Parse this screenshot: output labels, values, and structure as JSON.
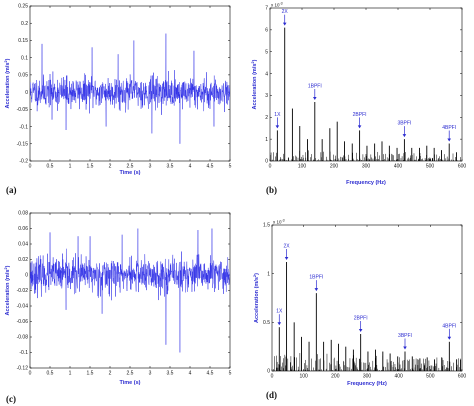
{
  "chart_data": [
    {
      "id": "a",
      "panel_label": "(a)",
      "type": "line",
      "xlabel": "Time (s)",
      "ylabel": "Acceleration (m/s",
      "ylabel_sup": "2",
      "ylabel_close": ")",
      "xlim": [
        0,
        5
      ],
      "ylim": [
        -0.2,
        0.25
      ],
      "xticks": [
        0,
        0.5,
        1,
        1.5,
        2,
        2.5,
        3,
        3.5,
        4,
        4.5,
        5
      ],
      "xtick_labels": [
        "0",
        "0.5",
        "1",
        "1.5",
        "2",
        "2.5",
        "3",
        "3.5",
        "4",
        "4.5",
        "5"
      ],
      "yticks": [
        -0.2,
        -0.15,
        -0.1,
        -0.05,
        0,
        0.05,
        0.1,
        0.15,
        0.2,
        0.25
      ],
      "ytick_labels": [
        "-0.2",
        "-0.15",
        "-0.1",
        "-0.05",
        "0",
        "0.05",
        "0.1",
        "0.15",
        "0.2",
        "0.25"
      ],
      "color": "#2e2ee6",
      "noise": {
        "n": 900,
        "sigma": 0.022,
        "seed": 11,
        "spikes": [
          [
            0.3,
            0.14
          ],
          [
            0.9,
            -0.11
          ],
          [
            1.55,
            0.13
          ],
          [
            1.9,
            -0.1
          ],
          [
            2.6,
            0.15
          ],
          [
            3.05,
            -0.12
          ],
          [
            3.4,
            0.17
          ],
          [
            3.75,
            -0.15
          ],
          [
            4.1,
            0.12
          ],
          [
            4.6,
            -0.1
          ],
          [
            0.55,
            -0.08
          ],
          [
            2.2,
            0.11
          ]
        ]
      }
    },
    {
      "id": "b",
      "panel_label": "(b)",
      "type": "bar",
      "xlabel": "Frequency (Hz)",
      "ylabel": "Acceleration (m/s",
      "ylabel_sup": "2",
      "ylabel_close": ")",
      "exponent": "x 10",
      "exponent_sup": "-3",
      "xlim": [
        0,
        600
      ],
      "ylim": [
        0,
        7
      ],
      "xticks": [
        0,
        100,
        200,
        300,
        400,
        500,
        600
      ],
      "xtick_labels": [
        "0",
        "100",
        "200",
        "300",
        "400",
        "500",
        "600"
      ],
      "yticks": [
        0,
        1,
        2,
        3,
        4,
        5,
        6,
        7
      ],
      "ytick_labels": [
        "0",
        "1",
        "2",
        "3",
        "4",
        "5",
        "6",
        "7"
      ],
      "color": "#000000",
      "peaks": [
        [
          23,
          1.4
        ],
        [
          46,
          6.1
        ],
        [
          70,
          2.4
        ],
        [
          93,
          1.6
        ],
        [
          117,
          1.0
        ],
        [
          140,
          2.7
        ],
        [
          163,
          1.0
        ],
        [
          187,
          1.5
        ],
        [
          210,
          1.8
        ],
        [
          233,
          0.9
        ],
        [
          257,
          0.8
        ],
        [
          280,
          1.4
        ],
        [
          303,
          0.7
        ],
        [
          327,
          0.8
        ],
        [
          350,
          0.9
        ],
        [
          373,
          0.7
        ],
        [
          397,
          0.6
        ],
        [
          420,
          1.0
        ],
        [
          443,
          0.6
        ],
        [
          467,
          0.6
        ],
        [
          490,
          0.7
        ],
        [
          513,
          0.6
        ],
        [
          536,
          0.5
        ],
        [
          560,
          0.8
        ],
        [
          583,
          0.4
        ]
      ],
      "noise": {
        "n": 220,
        "max": 0.55,
        "seed": 5
      },
      "annotations": [
        {
          "label": "2X",
          "x": 46,
          "y": 6.1
        },
        {
          "label": "1X",
          "x": 23,
          "y": 1.4
        },
        {
          "label": "1BPFI",
          "x": 140,
          "y": 2.7
        },
        {
          "label": "2BPFI",
          "x": 280,
          "y": 1.4
        },
        {
          "label": "3BPFI",
          "x": 420,
          "y": 1.0
        },
        {
          "label": "4BPFI",
          "x": 560,
          "y": 0.8
        }
      ]
    },
    {
      "id": "c",
      "panel_label": "(c)",
      "type": "line",
      "xlabel": "Time (s)",
      "ylabel": "Acceleration (m/s",
      "ylabel_sup": "2",
      "ylabel_close": ")",
      "xlim": [
        0,
        5
      ],
      "ylim": [
        -0.12,
        0.08
      ],
      "xticks": [
        0,
        0.5,
        1,
        1.5,
        2,
        2.5,
        3,
        3.5,
        4,
        4.5,
        5
      ],
      "xtick_labels": [
        "0",
        "0.5",
        "1",
        "1.5",
        "2",
        "2.5",
        "3",
        "3.5",
        "4",
        "4.5",
        "5"
      ],
      "yticks": [
        -0.12,
        -0.1,
        -0.08,
        -0.06,
        -0.04,
        -0.02,
        0,
        0.02,
        0.04,
        0.06,
        0.08
      ],
      "ytick_labels": [
        "-0.12",
        "-0.1",
        "-0.08",
        "-0.06",
        "-0.04",
        "-0.02",
        "0",
        "0.02",
        "0.04",
        "0.06",
        "0.08"
      ],
      "color": "#2e2ee6",
      "noise": {
        "n": 900,
        "sigma": 0.011,
        "seed": 23,
        "spikes": [
          [
            0.5,
            0.055
          ],
          [
            1.2,
            0.05
          ],
          [
            1.8,
            -0.05
          ],
          [
            2.7,
            0.06
          ],
          [
            3.4,
            -0.09
          ],
          [
            3.75,
            -0.1
          ],
          [
            4.2,
            0.058
          ],
          [
            4.55,
            0.06
          ],
          [
            0.9,
            -0.045
          ],
          [
            2.3,
            0.052
          ],
          [
            1.5,
            0.05
          ]
        ]
      }
    },
    {
      "id": "d",
      "panel_label": "(d)",
      "type": "bar",
      "xlabel": "Frequency (Hz)",
      "ylabel": "Acceleration (m/s",
      "ylabel_sup": "2",
      "ylabel_close": ")",
      "exponent": "x 10",
      "exponent_sup": "-3",
      "xlim": [
        0,
        600
      ],
      "ylim": [
        0,
        1.5
      ],
      "xticks": [
        0,
        100,
        200,
        300,
        400,
        500,
        600
      ],
      "xtick_labels": [
        "0",
        "100",
        "200",
        "300",
        "400",
        "500",
        "600"
      ],
      "yticks": [
        0,
        0.5,
        1,
        1.5
      ],
      "ytick_labels": [
        "0",
        "0.5",
        "1",
        "1.5"
      ],
      "color": "#000000",
      "peaks": [
        [
          23,
          0.45
        ],
        [
          46,
          1.12
        ],
        [
          70,
          0.5
        ],
        [
          93,
          0.35
        ],
        [
          117,
          0.3
        ],
        [
          140,
          0.8
        ],
        [
          163,
          0.3
        ],
        [
          187,
          0.32
        ],
        [
          210,
          0.28
        ],
        [
          233,
          0.25
        ],
        [
          257,
          0.22
        ],
        [
          280,
          0.38
        ],
        [
          303,
          0.2
        ],
        [
          327,
          0.22
        ],
        [
          350,
          0.2
        ],
        [
          373,
          0.18
        ],
        [
          397,
          0.15
        ],
        [
          420,
          0.2
        ],
        [
          443,
          0.15
        ],
        [
          467,
          0.13
        ],
        [
          490,
          0.14
        ],
        [
          513,
          0.12
        ],
        [
          536,
          0.14
        ],
        [
          560,
          0.3
        ],
        [
          583,
          0.12
        ]
      ],
      "noise": {
        "n": 260,
        "max": 0.2,
        "seed": 9
      },
      "annotations": [
        {
          "label": "2X",
          "x": 46,
          "y": 1.12
        },
        {
          "label": "1X",
          "x": 23,
          "y": 0.45
        },
        {
          "label": "1BPFI",
          "x": 140,
          "y": 0.8
        },
        {
          "label": "2BPFI",
          "x": 280,
          "y": 0.38
        },
        {
          "label": "3BPFI",
          "x": 420,
          "y": 0.2
        },
        {
          "label": "4BPFI",
          "x": 560,
          "y": 0.3
        }
      ]
    }
  ]
}
